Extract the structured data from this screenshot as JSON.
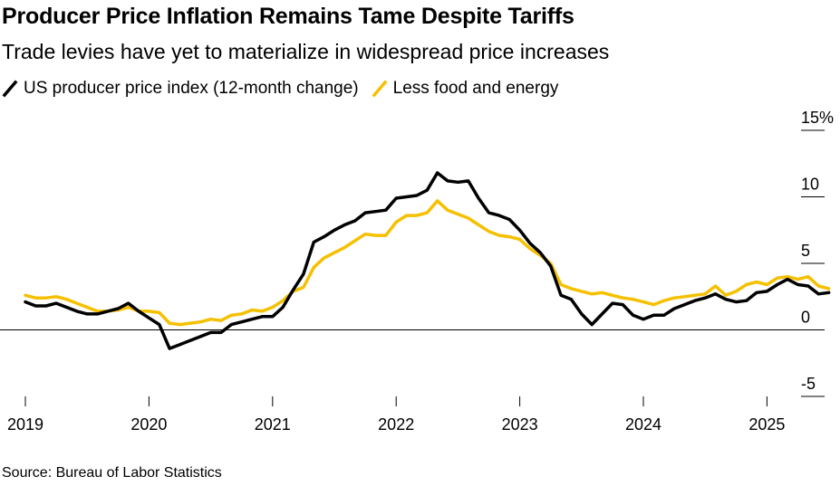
{
  "header": {
    "title": "Producer Price Inflation Remains Tame Despite Tariffs",
    "subtitle": "Trade levies have yet to materialize in widespread price increases"
  },
  "footer": {
    "source": "Source: Bureau of Labor Statistics"
  },
  "colors": {
    "ppi": "#000000",
    "core": "#f5c000",
    "zero_line": "#000000",
    "gridline": "#000000"
  },
  "chart_data": {
    "type": "line",
    "title": "Producer Price Inflation Remains Tame Despite Tariffs",
    "subtitle": "Trade levies have yet to materialize in widespread price increases",
    "xlabel": "",
    "ylabel": "",
    "x_range": [
      "2019-01",
      "2025-06"
    ],
    "ylim": [
      -5,
      15
    ],
    "y_ticks": [
      "15%",
      "10",
      "5",
      "0",
      "-5"
    ],
    "x_ticks": [
      "2019",
      "2020",
      "2021",
      "2022",
      "2023",
      "2024",
      "2025"
    ],
    "legend_position": "top-left",
    "grid": "tick-marks-only",
    "series": [
      {
        "name": "US producer price index (12-month change)",
        "color": "#000000",
        "points": [
          [
            "2019-01",
            2.1
          ],
          [
            "2019-02",
            1.8
          ],
          [
            "2019-03",
            1.8
          ],
          [
            "2019-04",
            2.0
          ],
          [
            "2019-05",
            1.7
          ],
          [
            "2019-06",
            1.4
          ],
          [
            "2019-07",
            1.2
          ],
          [
            "2019-08",
            1.2
          ],
          [
            "2019-09",
            1.4
          ],
          [
            "2019-10",
            1.6
          ],
          [
            "2019-11",
            2.0
          ],
          [
            "2019-12",
            1.4
          ],
          [
            "2020-01",
            0.9
          ],
          [
            "2020-02",
            0.4
          ],
          [
            "2020-03",
            -1.4
          ],
          [
            "2020-04",
            -1.1
          ],
          [
            "2020-05",
            -0.8
          ],
          [
            "2020-06",
            -0.5
          ],
          [
            "2020-07",
            -0.2
          ],
          [
            "2020-08",
            -0.2
          ],
          [
            "2020-09",
            0.4
          ],
          [
            "2020-10",
            0.6
          ],
          [
            "2020-11",
            0.8
          ],
          [
            "2020-12",
            1.0
          ],
          [
            "2021-01",
            1.0
          ],
          [
            "2021-02",
            1.7
          ],
          [
            "2021-03",
            3.0
          ],
          [
            "2021-04",
            4.2
          ],
          [
            "2021-05",
            6.6
          ],
          [
            "2021-06",
            7.0
          ],
          [
            "2021-07",
            7.5
          ],
          [
            "2021-08",
            7.9
          ],
          [
            "2021-09",
            8.2
          ],
          [
            "2021-10",
            8.8
          ],
          [
            "2021-11",
            8.9
          ],
          [
            "2021-12",
            9.0
          ],
          [
            "2022-01",
            9.9
          ],
          [
            "2022-02",
            10.0
          ],
          [
            "2022-03",
            10.1
          ],
          [
            "2022-04",
            10.5
          ],
          [
            "2022-05",
            11.8
          ],
          [
            "2022-06",
            11.2
          ],
          [
            "2022-07",
            11.1
          ],
          [
            "2022-08",
            11.2
          ],
          [
            "2022-09",
            9.9
          ],
          [
            "2022-10",
            8.8
          ],
          [
            "2022-11",
            8.6
          ],
          [
            "2022-12",
            8.3
          ],
          [
            "2023-01",
            7.5
          ],
          [
            "2023-02",
            6.5
          ],
          [
            "2023-03",
            5.8
          ],
          [
            "2023-04",
            4.8
          ],
          [
            "2023-05",
            2.6
          ],
          [
            "2023-06",
            2.3
          ],
          [
            "2023-07",
            1.2
          ],
          [
            "2023-08",
            0.4
          ],
          [
            "2023-09",
            1.2
          ],
          [
            "2023-10",
            2.0
          ],
          [
            "2023-11",
            1.9
          ],
          [
            "2023-12",
            1.1
          ],
          [
            "2024-01",
            0.8
          ],
          [
            "2024-02",
            1.1
          ],
          [
            "2024-03",
            1.1
          ],
          [
            "2024-04",
            1.6
          ],
          [
            "2024-05",
            1.9
          ],
          [
            "2024-06",
            2.2
          ],
          [
            "2024-07",
            2.4
          ],
          [
            "2024-08",
            2.7
          ],
          [
            "2024-09",
            2.3
          ],
          [
            "2024-10",
            2.1
          ],
          [
            "2024-11",
            2.2
          ],
          [
            "2024-12",
            2.8
          ],
          [
            "2025-01",
            2.9
          ],
          [
            "2025-02",
            3.4
          ],
          [
            "2025-03",
            3.8
          ],
          [
            "2025-04",
            3.4
          ],
          [
            "2025-05",
            3.3
          ],
          [
            "2025-06",
            2.7
          ],
          [
            "2025-07",
            2.8
          ]
        ]
      },
      {
        "name": "Less food and energy",
        "color": "#f5c000",
        "points": [
          [
            "2019-01",
            2.6
          ],
          [
            "2019-02",
            2.4
          ],
          [
            "2019-03",
            2.4
          ],
          [
            "2019-04",
            2.5
          ],
          [
            "2019-05",
            2.3
          ],
          [
            "2019-06",
            2.0
          ],
          [
            "2019-07",
            1.7
          ],
          [
            "2019-08",
            1.4
          ],
          [
            "2019-09",
            1.4
          ],
          [
            "2019-10",
            1.5
          ],
          [
            "2019-11",
            1.7
          ],
          [
            "2019-12",
            1.4
          ],
          [
            "2020-01",
            1.4
          ],
          [
            "2020-02",
            1.3
          ],
          [
            "2020-03",
            0.5
          ],
          [
            "2020-04",
            0.4
          ],
          [
            "2020-05",
            0.5
          ],
          [
            "2020-06",
            0.6
          ],
          [
            "2020-07",
            0.8
          ],
          [
            "2020-08",
            0.7
          ],
          [
            "2020-09",
            1.1
          ],
          [
            "2020-10",
            1.2
          ],
          [
            "2020-11",
            1.5
          ],
          [
            "2020-12",
            1.4
          ],
          [
            "2021-01",
            1.7
          ],
          [
            "2021-02",
            2.2
          ],
          [
            "2021-03",
            2.9
          ],
          [
            "2021-04",
            3.2
          ],
          [
            "2021-05",
            4.7
          ],
          [
            "2021-06",
            5.4
          ],
          [
            "2021-07",
            5.8
          ],
          [
            "2021-08",
            6.2
          ],
          [
            "2021-09",
            6.7
          ],
          [
            "2021-10",
            7.2
          ],
          [
            "2021-11",
            7.1
          ],
          [
            "2021-12",
            7.1
          ],
          [
            "2022-01",
            8.1
          ],
          [
            "2022-02",
            8.6
          ],
          [
            "2022-03",
            8.6
          ],
          [
            "2022-04",
            8.8
          ],
          [
            "2022-05",
            9.7
          ],
          [
            "2022-06",
            9.0
          ],
          [
            "2022-07",
            8.7
          ],
          [
            "2022-08",
            8.4
          ],
          [
            "2022-09",
            7.9
          ],
          [
            "2022-10",
            7.4
          ],
          [
            "2022-11",
            7.1
          ],
          [
            "2022-12",
            7.0
          ],
          [
            "2023-01",
            6.8
          ],
          [
            "2023-02",
            6.1
          ],
          [
            "2023-03",
            5.6
          ],
          [
            "2023-04",
            5.0
          ],
          [
            "2023-05",
            3.4
          ],
          [
            "2023-06",
            3.1
          ],
          [
            "2023-07",
            2.9
          ],
          [
            "2023-08",
            2.7
          ],
          [
            "2023-09",
            2.8
          ],
          [
            "2023-10",
            2.6
          ],
          [
            "2023-11",
            2.4
          ],
          [
            "2023-12",
            2.3
          ],
          [
            "2024-01",
            2.1
          ],
          [
            "2024-02",
            1.9
          ],
          [
            "2024-03",
            2.2
          ],
          [
            "2024-04",
            2.4
          ],
          [
            "2024-05",
            2.5
          ],
          [
            "2024-06",
            2.6
          ],
          [
            "2024-07",
            2.7
          ],
          [
            "2024-08",
            3.3
          ],
          [
            "2024-09",
            2.6
          ],
          [
            "2024-10",
            2.9
          ],
          [
            "2024-11",
            3.4
          ],
          [
            "2024-12",
            3.6
          ],
          [
            "2025-01",
            3.4
          ],
          [
            "2025-02",
            3.9
          ],
          [
            "2025-03",
            4.0
          ],
          [
            "2025-04",
            3.8
          ],
          [
            "2025-05",
            4.0
          ],
          [
            "2025-06",
            3.3
          ],
          [
            "2025-07",
            3.1
          ]
        ]
      }
    ]
  }
}
